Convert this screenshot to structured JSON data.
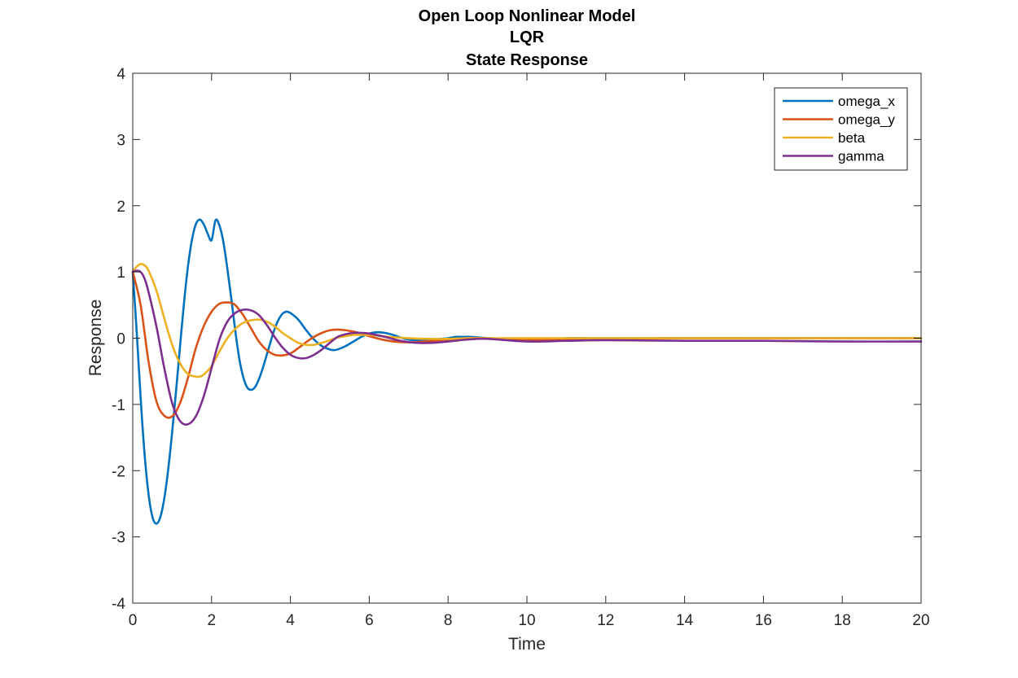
{
  "chart_data": {
    "type": "line",
    "title": [
      "Open Loop Nonlinear Model",
      "LQR",
      "State Response"
    ],
    "xlabel": "Time",
    "ylabel": "Response",
    "xlim": [
      0,
      20
    ],
    "ylim": [
      -4,
      4
    ],
    "xticks": [
      0,
      2,
      4,
      6,
      8,
      10,
      12,
      14,
      16,
      18,
      20
    ],
    "yticks": [
      -4,
      -3,
      -2,
      -1,
      0,
      1,
      2,
      3,
      4
    ],
    "grid": false,
    "legend_position": "top-right",
    "series": [
      {
        "name": "omega_x",
        "color": "#0072BD",
        "x": [
          0,
          0.1,
          0.2,
          0.3,
          0.4,
          0.5,
          0.6,
          0.7,
          0.8,
          0.9,
          1.0,
          1.1,
          1.2,
          1.3,
          1.4,
          1.5,
          1.6,
          1.7,
          1.8,
          1.9,
          2.0,
          2.1,
          2.2,
          2.3,
          2.4,
          2.5,
          2.6,
          2.7,
          2.8,
          2.9,
          3.0,
          3.1,
          3.2,
          3.3,
          3.4,
          3.5,
          3.6,
          3.7,
          3.8,
          3.9,
          4.0,
          4.2,
          4.4,
          4.6,
          4.8,
          5.0,
          5.1,
          5.2,
          5.4,
          5.6,
          5.8,
          6.0,
          6.2,
          6.4,
          6.6,
          6.8,
          7.0,
          7.2,
          7.4,
          7.6,
          7.8,
          8.0,
          8.1,
          8.2,
          8.4,
          8.6,
          8.8,
          9.0,
          9.5,
          10,
          10.5,
          11,
          11.5,
          12,
          13,
          14,
          15,
          16,
          17,
          18,
          19,
          20
        ],
        "values": [
          1.0,
          0.1,
          -0.9,
          -1.75,
          -2.35,
          -2.7,
          -2.8,
          -2.7,
          -2.42,
          -1.98,
          -1.42,
          -0.79,
          -0.12,
          0.53,
          1.08,
          1.48,
          1.72,
          1.79,
          1.72,
          1.58,
          1.48,
          1.78,
          1.7,
          1.45,
          1.05,
          0.6,
          0.12,
          -0.3,
          -0.58,
          -0.74,
          -0.78,
          -0.74,
          -0.62,
          -0.45,
          -0.25,
          -0.05,
          0.14,
          0.28,
          0.37,
          0.4,
          0.38,
          0.28,
          0.12,
          -0.02,
          -0.12,
          -0.17,
          -0.18,
          -0.17,
          -0.12,
          -0.05,
          0.02,
          0.07,
          0.09,
          0.08,
          0.05,
          0.01,
          -0.02,
          -0.03,
          -0.03,
          -0.02,
          -0.01,
          0.0,
          0.01,
          0.02,
          0.02,
          0.02,
          0.01,
          0.0,
          -0.01,
          -0.02,
          -0.01,
          0.0,
          0.0,
          0.0,
          0.0,
          0.0,
          0.0,
          0.0,
          0.0,
          0.0,
          0.0,
          0.0
        ]
      },
      {
        "name": "omega_y",
        "color": "#D95319",
        "x": [
          0,
          0.2,
          0.4,
          0.6,
          0.8,
          1.0,
          1.2,
          1.4,
          1.6,
          1.8,
          2.0,
          2.2,
          2.4,
          2.5,
          2.6,
          2.8,
          3.0,
          3.2,
          3.4,
          3.6,
          3.8,
          4.0,
          4.2,
          4.4,
          4.6,
          4.8,
          5.0,
          5.2,
          5.4,
          5.6,
          5.8,
          6.0,
          6.4,
          6.8,
          7.2,
          7.6,
          8.0,
          8.5,
          9.0,
          10,
          11,
          12,
          14,
          16,
          18,
          20
        ],
        "values": [
          1.0,
          0.5,
          -0.35,
          -0.95,
          -1.17,
          -1.18,
          -0.98,
          -0.6,
          -0.15,
          0.18,
          0.4,
          0.52,
          0.54,
          0.53,
          0.5,
          0.35,
          0.15,
          -0.05,
          -0.18,
          -0.25,
          -0.26,
          -0.23,
          -0.15,
          -0.06,
          0.02,
          0.08,
          0.12,
          0.13,
          0.12,
          0.1,
          0.07,
          0.03,
          -0.03,
          -0.06,
          -0.06,
          -0.04,
          -0.02,
          0.0,
          0.0,
          -0.02,
          -0.02,
          -0.01,
          0.0,
          0.0,
          0.0,
          0.0
        ]
      },
      {
        "name": "beta",
        "color": "#EDB120",
        "x": [
          0,
          0.1,
          0.2,
          0.3,
          0.4,
          0.6,
          0.8,
          1.0,
          1.2,
          1.4,
          1.6,
          1.7,
          1.8,
          2.0,
          2.2,
          2.4,
          2.6,
          2.8,
          3.0,
          3.2,
          3.4,
          3.6,
          3.8,
          4.0,
          4.2,
          4.4,
          4.6,
          4.8,
          5.0,
          5.2,
          5.4,
          5.6,
          5.8,
          6.0,
          6.2,
          6.5,
          7.0,
          7.5,
          8.0,
          8.5,
          9.0,
          10,
          11,
          12,
          14,
          16,
          18,
          20
        ],
        "values": [
          1.0,
          1.08,
          1.12,
          1.1,
          1.02,
          0.72,
          0.3,
          -0.1,
          -0.38,
          -0.54,
          -0.58,
          -0.58,
          -0.55,
          -0.42,
          -0.2,
          0.0,
          0.14,
          0.23,
          0.27,
          0.28,
          0.25,
          0.18,
          0.08,
          0.0,
          -0.07,
          -0.1,
          -0.1,
          -0.07,
          -0.03,
          0.01,
          0.03,
          0.05,
          0.05,
          0.05,
          0.04,
          0.02,
          0.0,
          -0.01,
          -0.01,
          0.0,
          0.0,
          0.0,
          0.0,
          0.0,
          0.0,
          0.0,
          0.0,
          0.0
        ]
      },
      {
        "name": "gamma",
        "color": "#7E2F8E",
        "x": [
          0,
          0.1,
          0.2,
          0.3,
          0.4,
          0.6,
          0.8,
          1.0,
          1.2,
          1.4,
          1.6,
          1.8,
          2.0,
          2.2,
          2.4,
          2.6,
          2.8,
          3.0,
          3.2,
          3.4,
          3.6,
          3.8,
          4.0,
          4.2,
          4.4,
          4.6,
          4.8,
          5.0,
          5.2,
          5.4,
          5.6,
          5.8,
          6.0,
          6.4,
          6.8,
          7.2,
          7.6,
          8.0,
          8.5,
          9.0,
          10,
          11,
          12,
          14,
          16,
          18,
          20
        ],
        "values": [
          1.0,
          1.02,
          1.0,
          0.9,
          0.7,
          0.18,
          -0.45,
          -0.98,
          -1.25,
          -1.3,
          -1.18,
          -0.88,
          -0.45,
          -0.02,
          0.25,
          0.38,
          0.43,
          0.42,
          0.35,
          0.2,
          0.02,
          -0.14,
          -0.25,
          -0.3,
          -0.3,
          -0.25,
          -0.17,
          -0.07,
          0.02,
          0.06,
          0.08,
          0.08,
          0.07,
          0.02,
          -0.04,
          -0.07,
          -0.07,
          -0.05,
          -0.02,
          -0.01,
          -0.05,
          -0.04,
          -0.03,
          -0.04,
          -0.04,
          -0.05,
          -0.05
        ]
      }
    ]
  }
}
